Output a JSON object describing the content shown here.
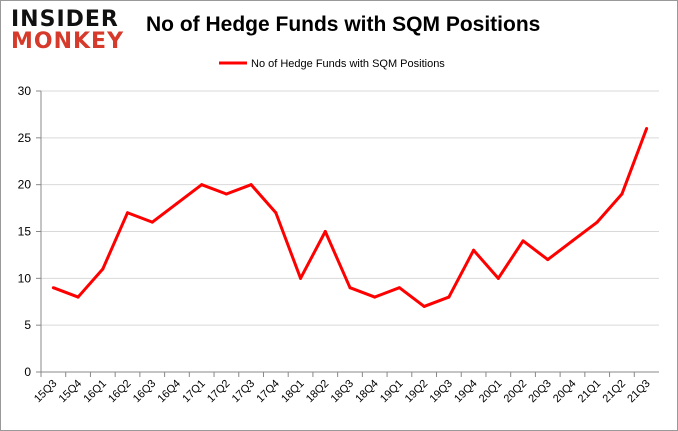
{
  "logo": {
    "line1": "INSIDER",
    "line2": "MONKEY"
  },
  "colors": {
    "line": "#ff0000",
    "grid": "#d9d9d9",
    "axis": "#888888"
  },
  "chart_data": {
    "type": "line",
    "title": "No of Hedge Funds with SQM Positions",
    "xlabel": "",
    "ylabel": "",
    "ylim": [
      0,
      30
    ],
    "yticks": [
      0,
      5,
      10,
      15,
      20,
      25,
      30
    ],
    "grid": true,
    "legend_position": "top-center",
    "categories": [
      "15Q3",
      "15Q4",
      "16Q1",
      "16Q2",
      "16Q3",
      "16Q4",
      "17Q1",
      "17Q2",
      "17Q3",
      "17Q4",
      "18Q1",
      "18Q2",
      "18Q3",
      "18Q4",
      "19Q1",
      "19Q2",
      "19Q3",
      "19Q4",
      "20Q1",
      "20Q2",
      "20Q3",
      "20Q4",
      "21Q1",
      "21Q2",
      "21Q3"
    ],
    "series": [
      {
        "name": "No of Hedge Funds with SQM Positions",
        "values": [
          9,
          8,
          11,
          17,
          16,
          18,
          20,
          19,
          20,
          17,
          10,
          15,
          9,
          8,
          9,
          7,
          8,
          13,
          10,
          14,
          12,
          14,
          16,
          19,
          26
        ]
      }
    ]
  }
}
